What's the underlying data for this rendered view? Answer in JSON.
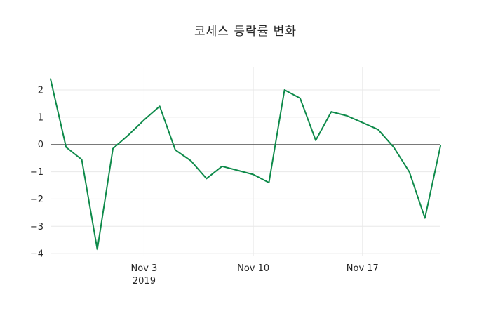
{
  "chart_data": {
    "type": "line",
    "title": "코세스 등락률 변화",
    "xlabel": "",
    "ylabel": "",
    "ylim": [
      -4.1,
      2.85
    ],
    "grid": "on",
    "legend": "none",
    "zero_line": true,
    "series": [
      {
        "name": "등락률",
        "values": [
          2.4,
          -0.1,
          -0.55,
          -3.85,
          -0.15,
          0.35,
          0.9,
          1.4,
          -0.2,
          -0.6,
          -1.25,
          -0.8,
          -0.95,
          -1.1,
          -1.4,
          2.0,
          1.7,
          0.15,
          1.2,
          1.05,
          0.8,
          0.55,
          -0.1,
          -1.0,
          -2.7,
          -0.05
        ]
      }
    ],
    "xticks": [
      {
        "index": 6,
        "label": "Nov 3",
        "sublabel": "2019"
      },
      {
        "index": 13,
        "label": "Nov 10",
        "sublabel": ""
      },
      {
        "index": 20,
        "label": "Nov 17",
        "sublabel": ""
      }
    ],
    "yticks": [
      {
        "value": 2,
        "label": "2"
      },
      {
        "value": 1,
        "label": "1"
      },
      {
        "value": 0,
        "label": "0"
      },
      {
        "value": -1,
        "label": "−1"
      },
      {
        "value": -2,
        "label": "−2"
      },
      {
        "value": -3,
        "label": "−3"
      },
      {
        "value": -4,
        "label": "−4"
      }
    ],
    "colors": {
      "line": "#0e8a4a",
      "grid": "#e8e8e8",
      "zero_line": "#4d4d4d",
      "tick_text": "#262626",
      "background": "#ffffff"
    }
  }
}
